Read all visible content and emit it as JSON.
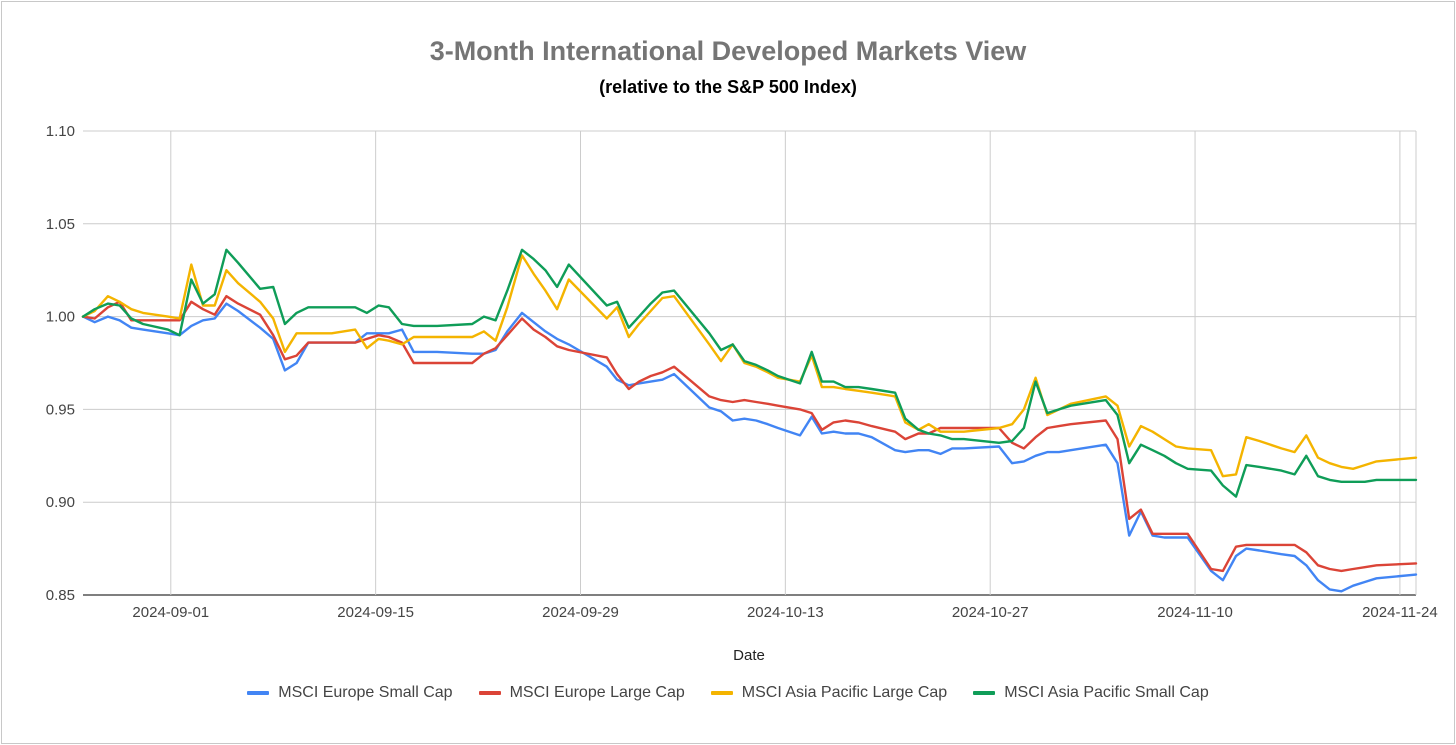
{
  "chart_data": {
    "type": "line",
    "title": "3-Month International Developed Markets View",
    "subtitle": "(relative to the S&P 500 Index)",
    "xlabel": "Date",
    "ylabel": "",
    "ylim": [
      0.85,
      1.1
    ],
    "yticks": [
      "0.85",
      "0.90",
      "0.95",
      "1.00",
      "1.05",
      "1.10"
    ],
    "xticks": [
      {
        "label": "2024-09-01",
        "day": 6
      },
      {
        "label": "2024-09-15",
        "day": 20
      },
      {
        "label": "2024-09-29",
        "day": 34
      },
      {
        "label": "2024-10-13",
        "day": 48
      },
      {
        "label": "2024-10-27",
        "day": 62
      },
      {
        "label": "2024-11-10",
        "day": 76
      },
      {
        "label": "2024-11-24",
        "day": 90
      }
    ],
    "xlim": [
      0,
      91.1
    ],
    "x": [
      0,
      0.8,
      1.7,
      2.5,
      3.3,
      4.1,
      5.8,
      6.6,
      7.4,
      8.2,
      9,
      9.8,
      10.6,
      12.1,
      13,
      13.8,
      14.6,
      15.4,
      16.2,
      17,
      18.6,
      19.4,
      20.2,
      20.9,
      21.8,
      22.6,
      23.4,
      24.2,
      26.6,
      27.4,
      28.2,
      29,
      30,
      30.8,
      31.6,
      32.4,
      33.2,
      35.8,
      36.5,
      37.3,
      38,
      38.8,
      39.6,
      40.4,
      42.8,
      43.6,
      44.4,
      45.2,
      46,
      46.8,
      47.5,
      49,
      49.8,
      50.5,
      51.3,
      52.1,
      53,
      53.9,
      55.5,
      56.2,
      57.1,
      57.8,
      58.6,
      59.4,
      60.2,
      62.6,
      63.5,
      64.3,
      65.1,
      65.9,
      66.7,
      67.5,
      69.9,
      70.7,
      71.5,
      72.3,
      73.1,
      73.9,
      74.7,
      75.5,
      77.1,
      77.9,
      78.8,
      79.5,
      80.4,
      81.9,
      82.8,
      83.6,
      84.4,
      85.2,
      86,
      86.8,
      87.6,
      88.4,
      91.1
    ],
    "series": [
      {
        "name": "MSCI Europe Small Cap",
        "color": "#4285f4",
        "values": [
          1.0,
          0.997,
          1.0,
          0.998,
          0.994,
          0.993,
          0.991,
          0.99,
          0.995,
          0.998,
          0.999,
          1.007,
          1.003,
          0.994,
          0.988,
          0.971,
          0.975,
          0.986,
          0.986,
          0.986,
          0.986,
          0.991,
          0.991,
          0.991,
          0.993,
          0.981,
          0.981,
          0.981,
          0.98,
          0.98,
          0.982,
          0.992,
          1.002,
          0.997,
          0.992,
          0.988,
          0.985,
          0.973,
          0.966,
          0.963,
          0.964,
          0.965,
          0.966,
          0.969,
          0.951,
          0.949,
          0.944,
          0.945,
          0.944,
          0.942,
          0.94,
          0.936,
          0.946,
          0.937,
          0.938,
          0.937,
          0.937,
          0.935,
          0.928,
          0.927,
          0.928,
          0.928,
          0.926,
          0.929,
          0.929,
          0.93,
          0.921,
          0.922,
          0.925,
          0.927,
          0.927,
          0.928,
          0.931,
          0.921,
          0.882,
          0.895,
          0.882,
          0.881,
          0.881,
          0.881,
          0.863,
          0.858,
          0.871,
          0.875,
          0.874,
          0.872,
          0.871,
          0.866,
          0.858,
          0.853,
          0.852,
          0.855,
          0.857,
          0.859,
          0.861
        ]
      },
      {
        "name": "MSCI Europe Large Cap",
        "color": "#db4437",
        "values": [
          1.0,
          0.999,
          1.005,
          1.008,
          0.998,
          0.998,
          0.998,
          0.998,
          1.008,
          1.004,
          1.001,
          1.011,
          1.007,
          1.001,
          0.99,
          0.977,
          0.979,
          0.986,
          0.986,
          0.986,
          0.986,
          0.988,
          0.99,
          0.989,
          0.986,
          0.975,
          0.975,
          0.975,
          0.975,
          0.98,
          0.983,
          0.99,
          0.999,
          0.993,
          0.989,
          0.984,
          0.982,
          0.978,
          0.969,
          0.961,
          0.965,
          0.968,
          0.97,
          0.973,
          0.957,
          0.955,
          0.954,
          0.955,
          0.954,
          0.953,
          0.952,
          0.95,
          0.948,
          0.939,
          0.943,
          0.944,
          0.943,
          0.941,
          0.938,
          0.934,
          0.937,
          0.937,
          0.94,
          0.94,
          0.94,
          0.94,
          0.932,
          0.929,
          0.935,
          0.94,
          0.941,
          0.942,
          0.944,
          0.934,
          0.891,
          0.896,
          0.883,
          0.883,
          0.883,
          0.883,
          0.864,
          0.863,
          0.876,
          0.877,
          0.877,
          0.877,
          0.877,
          0.873,
          0.866,
          0.864,
          0.863,
          0.864,
          0.865,
          0.866,
          0.867
        ]
      },
      {
        "name": "MSCI Asia Pacific Large Cap",
        "color": "#f4b400",
        "values": [
          1.0,
          1.003,
          1.011,
          1.008,
          1.004,
          1.002,
          1.0,
          0.999,
          1.028,
          1.006,
          1.006,
          1.025,
          1.018,
          1.008,
          0.999,
          0.981,
          0.991,
          0.991,
          0.991,
          0.991,
          0.993,
          0.983,
          0.988,
          0.987,
          0.985,
          0.989,
          0.989,
          0.989,
          0.989,
          0.992,
          0.987,
          1.005,
          1.033,
          1.023,
          1.014,
          1.004,
          1.02,
          0.999,
          1.005,
          0.989,
          0.996,
          1.003,
          1.01,
          1.011,
          0.985,
          0.976,
          0.985,
          0.975,
          0.973,
          0.97,
          0.967,
          0.965,
          0.979,
          0.962,
          0.962,
          0.961,
          0.96,
          0.959,
          0.957,
          0.943,
          0.939,
          0.942,
          0.938,
          0.938,
          0.938,
          0.94,
          0.942,
          0.95,
          0.967,
          0.947,
          0.95,
          0.953,
          0.957,
          0.952,
          0.93,
          0.941,
          0.938,
          0.934,
          0.93,
          0.929,
          0.928,
          0.914,
          0.915,
          0.935,
          0.933,
          0.929,
          0.927,
          0.936,
          0.924,
          0.921,
          0.919,
          0.918,
          0.92,
          0.922,
          0.924
        ]
      },
      {
        "name": "MSCI Asia Pacific Small Cap",
        "color": "#0f9d58",
        "values": [
          1.0,
          1.004,
          1.007,
          1.006,
          0.999,
          0.996,
          0.993,
          0.99,
          1.02,
          1.007,
          1.012,
          1.036,
          1.029,
          1.015,
          1.016,
          0.996,
          1.002,
          1.005,
          1.005,
          1.005,
          1.005,
          1.002,
          1.006,
          1.005,
          0.996,
          0.995,
          0.995,
          0.995,
          0.996,
          1.0,
          0.998,
          1.014,
          1.036,
          1.031,
          1.025,
          1.016,
          1.028,
          1.006,
          1.008,
          0.994,
          1.0,
          1.007,
          1.013,
          1.014,
          0.991,
          0.982,
          0.985,
          0.976,
          0.974,
          0.971,
          0.968,
          0.964,
          0.981,
          0.965,
          0.965,
          0.962,
          0.962,
          0.961,
          0.959,
          0.945,
          0.939,
          0.937,
          0.936,
          0.934,
          0.934,
          0.932,
          0.933,
          0.94,
          0.965,
          0.948,
          0.95,
          0.952,
          0.955,
          0.947,
          0.921,
          0.931,
          0.928,
          0.925,
          0.921,
          0.918,
          0.917,
          0.909,
          0.903,
          0.92,
          0.919,
          0.917,
          0.915,
          0.925,
          0.914,
          0.912,
          0.911,
          0.911,
          0.911,
          0.912,
          0.912
        ]
      }
    ],
    "legend_position": "bottom"
  }
}
